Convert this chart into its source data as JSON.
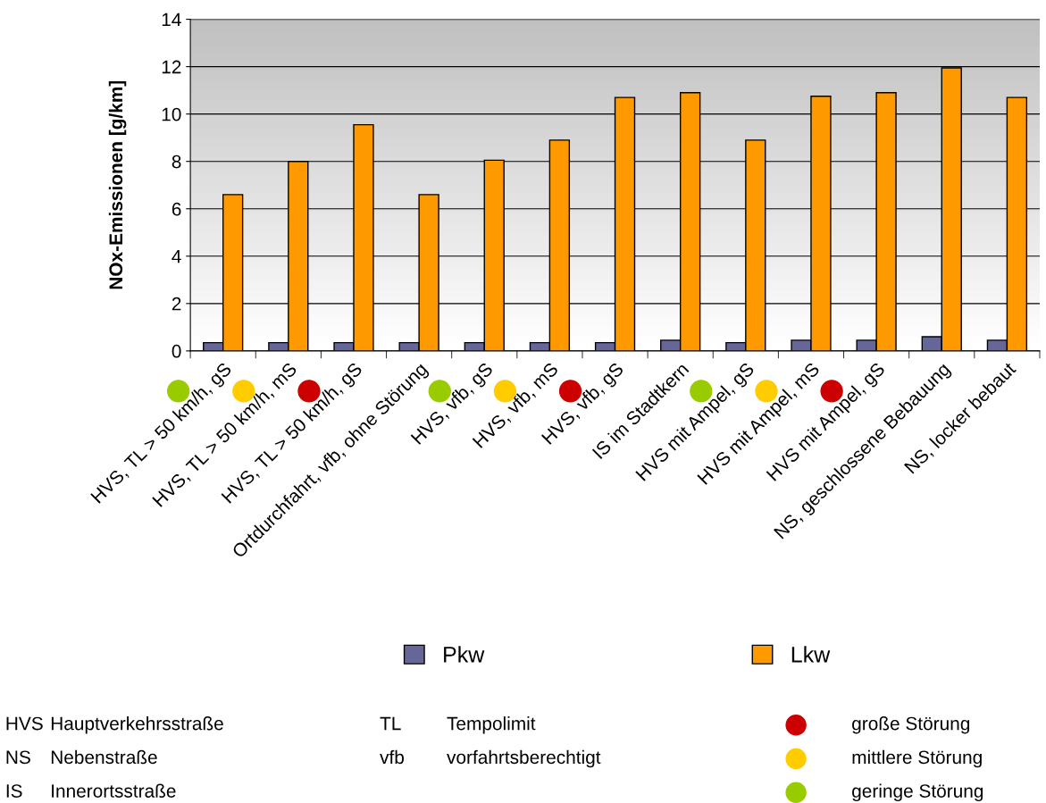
{
  "chart_data": {
    "type": "bar",
    "ylabel": "NOx-Emissionen [g/km]",
    "categories": [
      "HVS, TL > 50 km/h, gS",
      "HVS, TL > 50 km/h, mS",
      "HVS, TL > 50 km/h, gS",
      "Ortdurchfahrt, vfb, ohne Störung",
      "HVS, vfb, gS",
      "HVS, vfb, mS",
      "HVS, vfb, gS",
      "IS im Stadtkern",
      "HVS mit Ampel, gS",
      "HVS mit Ampel, mS",
      "HVS mit Ampel, gS",
      "NS, geschlossene Bebauung",
      "NS, locker bebaut"
    ],
    "series": [
      {
        "name": "Pkw",
        "color": "#666699",
        "values": [
          0.35,
          0.35,
          0.35,
          0.35,
          0.35,
          0.35,
          0.35,
          0.45,
          0.35,
          0.45,
          0.45,
          0.6,
          0.45
        ]
      },
      {
        "name": "Lkw",
        "color": "#ff9900",
        "values": [
          6.6,
          8.0,
          9.55,
          6.6,
          8.05,
          8.9,
          10.7,
          10.9,
          8.9,
          10.75,
          10.9,
          11.95,
          10.7
        ]
      }
    ],
    "ylim": [
      0,
      14
    ],
    "yticks": [
      0,
      2,
      4,
      6,
      8,
      10,
      12,
      14
    ],
    "grid": "y",
    "legend": "bottom",
    "annotations": [
      "HVS",
      "Hauptverkehrsstraße",
      "NS",
      "Nebenstraße",
      "IS",
      "Innerortsstraße",
      "TL",
      "Tempolimit",
      "vfb",
      "vorfahrtsberechtigt",
      "große Störung",
      "mittlere Störung",
      "geringe Störung"
    ]
  }
}
